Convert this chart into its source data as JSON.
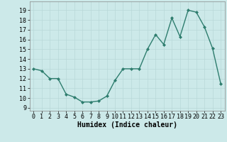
{
  "x": [
    0,
    1,
    2,
    3,
    4,
    5,
    6,
    7,
    8,
    9,
    10,
    11,
    12,
    13,
    14,
    15,
    16,
    17,
    18,
    19,
    20,
    21,
    22,
    23
  ],
  "y": [
    13,
    12.8,
    12,
    12,
    10.4,
    10.1,
    9.6,
    9.6,
    9.7,
    10.2,
    11.8,
    13,
    13,
    13,
    15,
    16.5,
    15.5,
    18.2,
    16.3,
    19,
    18.8,
    17.3,
    15.1,
    11.5
  ],
  "line_color": "#2e7d6e",
  "marker": "D",
  "markersize": 2.0,
  "linewidth": 1.0,
  "bg_color": "#cce9e9",
  "grid_color": "#b8d8d8",
  "xlabel": "Humidex (Indice chaleur)",
  "xlabel_fontsize": 7,
  "xlabel_fontweight": "bold",
  "xtick_labels": [
    "0",
    "1",
    "2",
    "3",
    "4",
    "5",
    "6",
    "7",
    "8",
    "9",
    "10",
    "11",
    "12",
    "13",
    "14",
    "15",
    "16",
    "17",
    "18",
    "19",
    "20",
    "21",
    "22",
    "23"
  ],
  "ytick_min": 9,
  "ytick_max": 19,
  "ytick_step": 1,
  "ylim": [
    8.7,
    19.9
  ],
  "xlim": [
    -0.5,
    23.5
  ],
  "tick_fontsize": 6.0
}
